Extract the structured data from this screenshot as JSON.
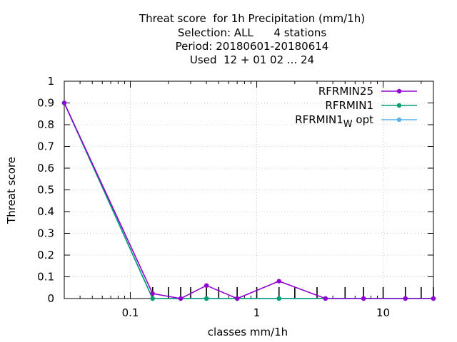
{
  "chart_data": {
    "type": "line",
    "title_lines": [
      "Threat score  for 1h Precipitation (mm/1h)",
      "Selection: ALL      4 stations",
      "Period: 20180601-20180614",
      "Used  12 + 01 02 ... 24"
    ],
    "xlabel": "classes mm/1h",
    "ylabel": "Threat score",
    "x_scale": "log",
    "xlim": [
      0.03,
      25
    ],
    "ylim": [
      0,
      1
    ],
    "x_ticks": [
      {
        "value": 0.1,
        "label": "0.1"
      },
      {
        "value": 1,
        "label": "1"
      },
      {
        "value": 10,
        "label": "10"
      }
    ],
    "y_ticks": [
      {
        "value": 0,
        "label": "0"
      },
      {
        "value": 0.1,
        "label": "0.1"
      },
      {
        "value": 0.2,
        "label": "0.2"
      },
      {
        "value": 0.3,
        "label": "0.3"
      },
      {
        "value": 0.4,
        "label": "0.4"
      },
      {
        "value": 0.5,
        "label": "0.5"
      },
      {
        "value": 0.6,
        "label": "0.6"
      },
      {
        "value": 0.7,
        "label": "0.7"
      },
      {
        "value": 0.8,
        "label": "0.8"
      },
      {
        "value": 0.9,
        "label": "0.9"
      },
      {
        "value": 1,
        "label": "1"
      }
    ],
    "grid": true,
    "legend_position": "top-right",
    "class_markers": [
      0.15,
      0.2,
      0.25,
      0.3,
      0.4,
      0.5,
      0.7,
      1,
      1.5,
      2,
      3,
      5,
      7,
      10,
      15,
      20,
      25
    ],
    "series": [
      {
        "name": "RFRMIN25",
        "color": "#9400d3",
        "x": [
          0.03,
          0.15,
          0.25,
          0.4,
          0.7,
          1.5,
          3.5,
          7,
          15,
          25
        ],
        "y": [
          0.9,
          0.023,
          0.0,
          0.06,
          0.0,
          0.08,
          0.0,
          0.0,
          0.0,
          0.0
        ]
      },
      {
        "name": "RFRMIN1",
        "color": "#009e73",
        "x": [
          0.03,
          0.15,
          0.25,
          0.4,
          0.7,
          1.5,
          3.5,
          7,
          15,
          25
        ],
        "y": [
          0.9,
          0.0,
          0.0,
          0.0,
          0.0,
          0.0,
          0.0,
          0.0,
          0.0,
          0.0
        ]
      },
      {
        "name": "RFRMIN1_W opt",
        "name_main": "RFRMIN1",
        "name_sub": "W",
        "name_tail": " opt",
        "color": "#56b4e9",
        "x": [
          0.03,
          0.15,
          0.25,
          0.4,
          0.7,
          1.5,
          3.5,
          7,
          15,
          25
        ],
        "y": [
          0.9,
          0.0,
          0.0,
          0.0,
          0.0,
          0.0,
          0.0,
          0.0,
          0.0,
          0.0
        ]
      }
    ]
  }
}
